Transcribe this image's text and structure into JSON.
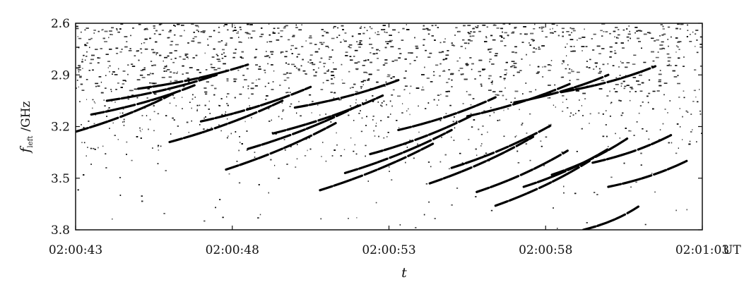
{
  "chart_data": {
    "type": "heatmap",
    "title": "",
    "xlabel": "t",
    "ylabel_symbol": "f",
    "ylabel_subscript": "left",
    "ylabel_unit": "/GHz",
    "x_unit_label": "UT",
    "x_ticks": [
      "02:00:43",
      "02:00:48",
      "02:00:53",
      "02:00:58",
      "02:01:03"
    ],
    "y_ticks": [
      "2.6",
      "2.9",
      "3.2",
      "3.5",
      "3.8"
    ],
    "y_tick_values": [
      2.6,
      2.9,
      3.2,
      3.5,
      3.8
    ],
    "xlim": [
      "02:00:43",
      "02:01:03"
    ],
    "ylim": [
      2.6,
      3.8
    ],
    "y_inverted": true,
    "colormap": "grayscale (black = emission, white = background)",
    "description_of_features": "fiber bursts drifting from high to low frequency",
    "fiber_bursts": [
      {
        "t_start": "02:00:43.0",
        "t_end": "02:00:46.2",
        "f_start": 3.23,
        "f_end": 3.0
      },
      {
        "t_start": "02:00:43.5",
        "t_end": "02:00:46.8",
        "f_start": 3.13,
        "f_end": 2.96
      },
      {
        "t_start": "02:00:44.0",
        "t_end": "02:00:47.5",
        "f_start": 3.05,
        "f_end": 2.9
      },
      {
        "t_start": "02:00:45.0",
        "t_end": "02:00:48.5",
        "f_start": 2.98,
        "f_end": 2.84
      },
      {
        "t_start": "02:00:46.0",
        "t_end": "02:00:49.6",
        "f_start": 3.29,
        "f_end": 3.05
      },
      {
        "t_start": "02:00:47.0",
        "t_end": "02:00:50.5",
        "f_start": 3.17,
        "f_end": 2.97
      },
      {
        "t_start": "02:00:47.8",
        "t_end": "02:00:51.3",
        "f_start": 3.45,
        "f_end": 3.18
      },
      {
        "t_start": "02:00:48.5",
        "t_end": "02:00:52.0",
        "f_start": 3.33,
        "f_end": 3.08
      },
      {
        "t_start": "02:00:49.3",
        "t_end": "02:00:52.8",
        "f_start": 3.24,
        "f_end": 3.02
      },
      {
        "t_start": "02:00:50.0",
        "t_end": "02:00:53.3",
        "f_start": 3.09,
        "f_end": 2.93
      },
      {
        "t_start": "02:00:50.8",
        "t_end": "02:00:54.4",
        "f_start": 3.57,
        "f_end": 3.3
      },
      {
        "t_start": "02:00:51.6",
        "t_end": "02:00:55.0",
        "f_start": 3.47,
        "f_end": 3.22
      },
      {
        "t_start": "02:00:52.4",
        "t_end": "02:00:55.6",
        "f_start": 3.36,
        "f_end": 3.14
      },
      {
        "t_start": "02:00:53.3",
        "t_end": "02:00:56.4",
        "f_start": 3.22,
        "f_end": 3.03
      },
      {
        "t_start": "02:00:54.3",
        "t_end": "02:00:57.6",
        "f_start": 3.53,
        "f_end": 3.26
      },
      {
        "t_start": "02:00:55.0",
        "t_end": "02:00:58.2",
        "f_start": 3.44,
        "f_end": 3.19
      },
      {
        "t_start": "02:00:55.8",
        "t_end": "02:00:58.7",
        "f_start": 3.58,
        "f_end": 3.34
      },
      {
        "t_start": "02:00:56.4",
        "t_end": "02:00:59.4",
        "f_start": 3.66,
        "f_end": 3.4
      },
      {
        "t_start": "02:00:57.3",
        "t_end": "02:01:00.0",
        "f_start": 3.55,
        "f_end": 3.33
      },
      {
        "t_start": "02:00:58.2",
        "t_end": "02:01:00.6",
        "f_start": 3.48,
        "f_end": 3.27
      },
      {
        "t_start": "02:00:59.2",
        "t_end": "02:01:01.0",
        "f_start": 3.8,
        "f_end": 3.66
      },
      {
        "t_start": "02:00:55.5",
        "t_end": "02:00:58.8",
        "f_start": 3.14,
        "f_end": 2.95
      },
      {
        "t_start": "02:00:57.0",
        "t_end": "02:01:00.0",
        "f_start": 3.06,
        "f_end": 2.9
      },
      {
        "t_start": "02:00:58.5",
        "t_end": "02:01:01.5",
        "f_start": 3.0,
        "f_end": 2.85
      },
      {
        "t_start": "02:00:59.5",
        "t_end": "02:01:02.0",
        "f_start": 3.41,
        "f_end": 3.25
      },
      {
        "t_start": "02:01:00.0",
        "t_end": "02:01:02.5",
        "f_start": 3.55,
        "f_end": 3.4
      }
    ],
    "colors": {
      "emission": "#000000",
      "background": "#ffffff",
      "axis": "#111111"
    }
  }
}
